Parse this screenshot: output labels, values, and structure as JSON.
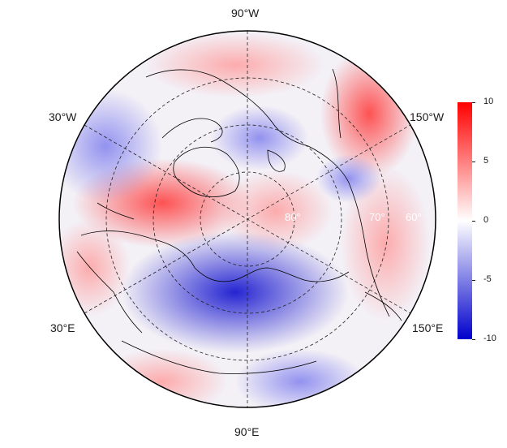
{
  "map": {
    "projection": "polar-stereographic-north",
    "longitude_labels": [
      "90°W",
      "30°W",
      "150°W",
      "30°E",
      "150°E",
      "90°E"
    ],
    "latitude_labels": [
      "80°",
      "70°",
      "60°"
    ]
  },
  "colorbar": {
    "ticks": [
      "10",
      "5",
      "0",
      "-5",
      "-10"
    ],
    "min": -10,
    "max": 10,
    "colors": {
      "high": "#ff0000",
      "mid": "#ffffff",
      "low": "#0000cc"
    }
  },
  "field_anomalies": {
    "cells": [
      {
        "lon": -150,
        "lat": 72,
        "value": 8
      },
      {
        "lon": -130,
        "lat": 65,
        "value": 7
      },
      {
        "lon": -60,
        "lat": 75,
        "value": -6
      },
      {
        "lon": -30,
        "lat": 60,
        "value": -5
      },
      {
        "lon": 10,
        "lat": 70,
        "value": 6
      },
      {
        "lon": 40,
        "lat": 75,
        "value": 5
      },
      {
        "lon": 90,
        "lat": 65,
        "value": -8
      },
      {
        "lon": 100,
        "lat": 55,
        "value": -6
      },
      {
        "lon": 150,
        "lat": 65,
        "value": -4
      },
      {
        "lon": 170,
        "lat": 60,
        "value": 5
      },
      {
        "lon": -170,
        "lat": 80,
        "value": 4
      }
    ]
  }
}
